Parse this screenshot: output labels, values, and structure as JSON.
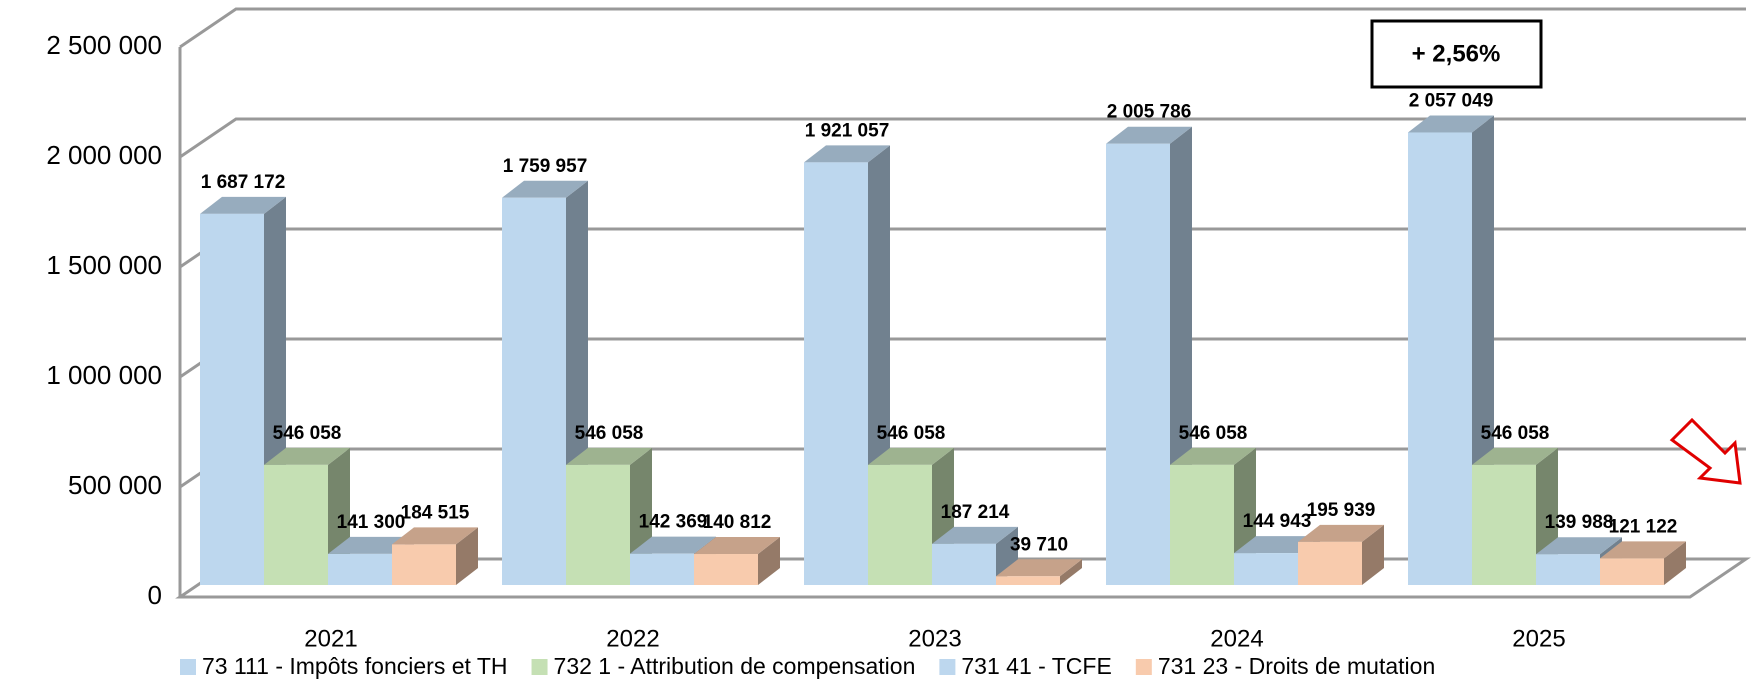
{
  "chart_data": {
    "type": "bar3d",
    "categories": [
      "2021",
      "2022",
      "2023",
      "2024",
      "2025"
    ],
    "series": [
      {
        "name": "73 111 - Impôts fonciers et TH",
        "color": "#bdd7ee",
        "values": [
          1687172,
          1759957,
          1921057,
          2005786,
          2057049
        ],
        "value_labels": [
          "1 687 172",
          "1 759 957",
          "1 921 057",
          "2 005 786",
          "2 057 049"
        ]
      },
      {
        "name": "732 1 - Attribution de compensation",
        "color": "#c5e0b4",
        "values": [
          546058,
          546058,
          546058,
          546058,
          546058
        ],
        "value_labels": [
          "546 058",
          "546 058",
          "546 058",
          "546 058",
          "546 058"
        ]
      },
      {
        "name": "731 41 - TCFE",
        "color": "#bdd7ee",
        "values": [
          141300,
          142369,
          187214,
          144943,
          139988
        ],
        "value_labels": [
          "141 300",
          "142 369",
          "187 214",
          "144 943",
          "139 988"
        ]
      },
      {
        "name": "731 23 - Droits de mutation",
        "color": "#f8cbad",
        "values": [
          184515,
          140812,
          39710,
          195939,
          121122
        ],
        "value_labels": [
          "184 515",
          "140 812",
          "39 710",
          "195 939",
          "121 122"
        ]
      }
    ],
    "ylim": [
      0,
      2500000
    ],
    "yticks": [
      0,
      {
        "value": 500000,
        "label": "500 000"
      },
      {
        "value": 1000000,
        "label": "1 000 000"
      },
      {
        "value": 1500000,
        "label": "1 500 000"
      },
      {
        "value": 2000000,
        "label": "2 000 000"
      },
      {
        "value": 2500000,
        "label": "2 500 000"
      }
    ],
    "grid": true,
    "annotation": "+ 2,56%",
    "legend": "bottom"
  }
}
